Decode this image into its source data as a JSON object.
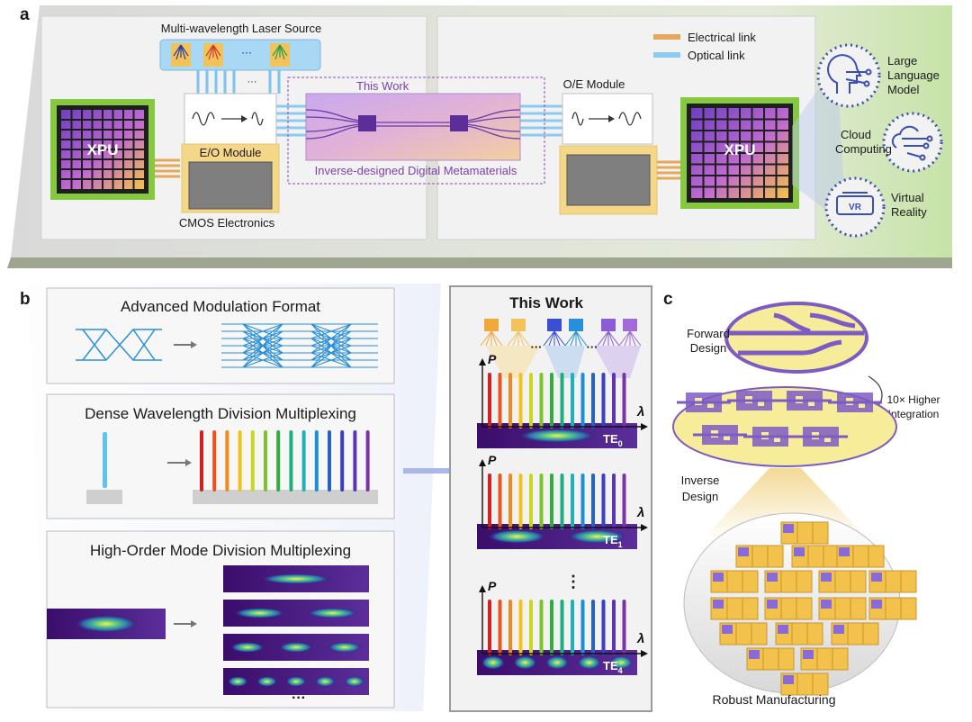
{
  "panel_a": {
    "label": "a",
    "laser_source": "Multi-wavelength Laser Source",
    "laser_ellipsis": "···",
    "fiber_ellipsis": "···",
    "xpu_left": "XPU",
    "xpu_right": "XPU",
    "eo_module": "E/O Module",
    "cmos": "CMOS Electronics",
    "this_work": "This Work",
    "metamaterials": "Inverse-designed Digital Metamaterials",
    "oe_module": "O/E Module",
    "legend": {
      "electrical": "Electrical link",
      "optical": "Optical link"
    },
    "apps": [
      {
        "lines": [
          "Large",
          "Language",
          "Model"
        ],
        "icon": "head-circuit-icon"
      },
      {
        "lines": [
          "Cloud",
          "Computing"
        ],
        "icon": "cloud-circuit-icon"
      },
      {
        "lines": [
          "Virtual",
          "Reality"
        ],
        "icon": "vr-headset-icon",
        "badge": "VR"
      }
    ],
    "colors": {
      "xpu_border": "#86c940",
      "module_border": "#e9c46a",
      "app_circle": "#3b4fb3",
      "metamaterial_box": "#8a4fb8"
    }
  },
  "panel_b": {
    "label": "b",
    "modulation": "Advanced Modulation Format",
    "wdm": "Dense Wavelength Division Multiplexing",
    "mdm": "High-Order Mode Division Multiplexing",
    "mdm_ellipsis": "···",
    "this_work": "This Work",
    "top_ellipsis_1": "···",
    "top_ellipsis_2": "···",
    "axis_p": "P",
    "axis_lambda": "λ",
    "vdots": "⋮",
    "modes": [
      {
        "name": "TE",
        "sub": "0",
        "lobes": 1
      },
      {
        "name": "TE",
        "sub": "1",
        "lobes": 2
      },
      {
        "name": "TE",
        "sub": "4",
        "lobes": 5
      }
    ]
  },
  "panel_c": {
    "label": "c",
    "forward": [
      "Forward",
      "Design"
    ],
    "integration": [
      "10× Higher",
      "Integration"
    ],
    "inverse": [
      "Inverse",
      "Design"
    ],
    "manufacturing": "Robust Manufacturing"
  }
}
